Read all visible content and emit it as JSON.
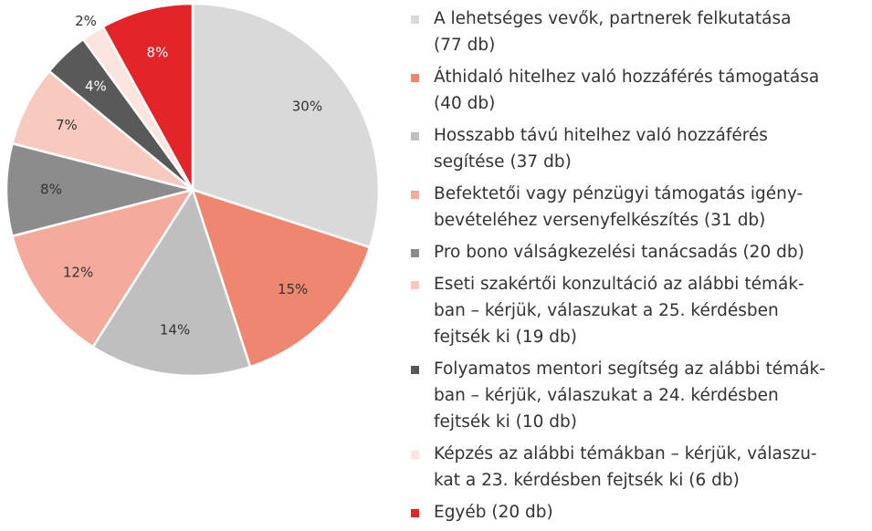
{
  "chart_data": {
    "type": "pie",
    "categories": [
      "A lehetséges vevők, partnerek felkutatása\n(77 db)",
      "Áthidaló hitelhez való hozzáférés támogatása\n(40 db)",
      "Hosszabb távú hitelhez való hozzáférés\nsegítése (37 db)",
      "Befektetői vagy pénzügyi támogatás igény-\nbevételéhez versenyfelkészítés (31 db)",
      "Pro bono válságkezelési tanácsadás (20 db)",
      "Eseti szakértői konzultáció az alábbi témák-\nban – kérjük, válaszukat a 25. kérdésben\nfejtsék ki (19 db)",
      "Folyamatos mentori segítség az alábbi témák-\nban – kérjük, válaszukat a 24. kérdésben\nfejtsék ki (10 db)",
      "Képzés az alábbi témákban – kérjük, válaszu-\nkat a 23. kérdésben fejtsék ki (6 db)",
      "Egyéb (20 db)"
    ],
    "values": [
      30,
      15,
      14,
      12,
      8,
      7,
      4,
      2,
      8
    ],
    "value_labels": [
      "30%",
      "15%",
      "14%",
      "12%",
      "8%",
      "7%",
      "4%",
      "2%",
      "8%"
    ],
    "colors": [
      "#d9d9d9",
      "#ef866f",
      "#bfbfbf",
      "#f4ab9b",
      "#8c8c8c",
      "#f8c9be",
      "#595959",
      "#fce4df",
      "#e3252a"
    ],
    "legend": "right"
  }
}
